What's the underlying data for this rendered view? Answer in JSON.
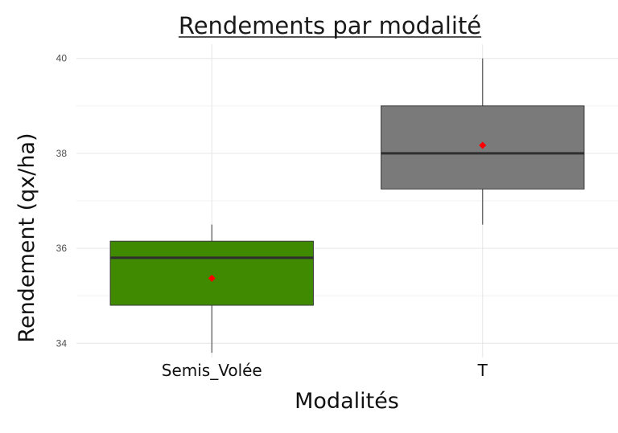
{
  "chart_data": {
    "type": "box",
    "title": "Rendements par modalité",
    "xlabel": "Modalités",
    "ylabel": "Rendement (qx/ha)",
    "ylim": [
      33.7,
      40.3
    ],
    "y_ticks": [
      "34",
      "36",
      "38",
      "40"
    ],
    "grid": true,
    "categories": [
      "Semis_Volée",
      "T"
    ],
    "boxes": [
      {
        "category": "Semis_Volée",
        "min": 33.8,
        "q1": 34.8,
        "median": 35.8,
        "q3": 36.15,
        "max": 36.5,
        "mean": 35.37,
        "color": "#3f8a00"
      },
      {
        "category": "T",
        "min": 36.5,
        "q1": 37.25,
        "median": 38.0,
        "q3": 39.0,
        "max": 40.0,
        "mean": 38.17,
        "color": "#7a7a7a"
      }
    ],
    "mean_marker_color": "#ff0000"
  }
}
